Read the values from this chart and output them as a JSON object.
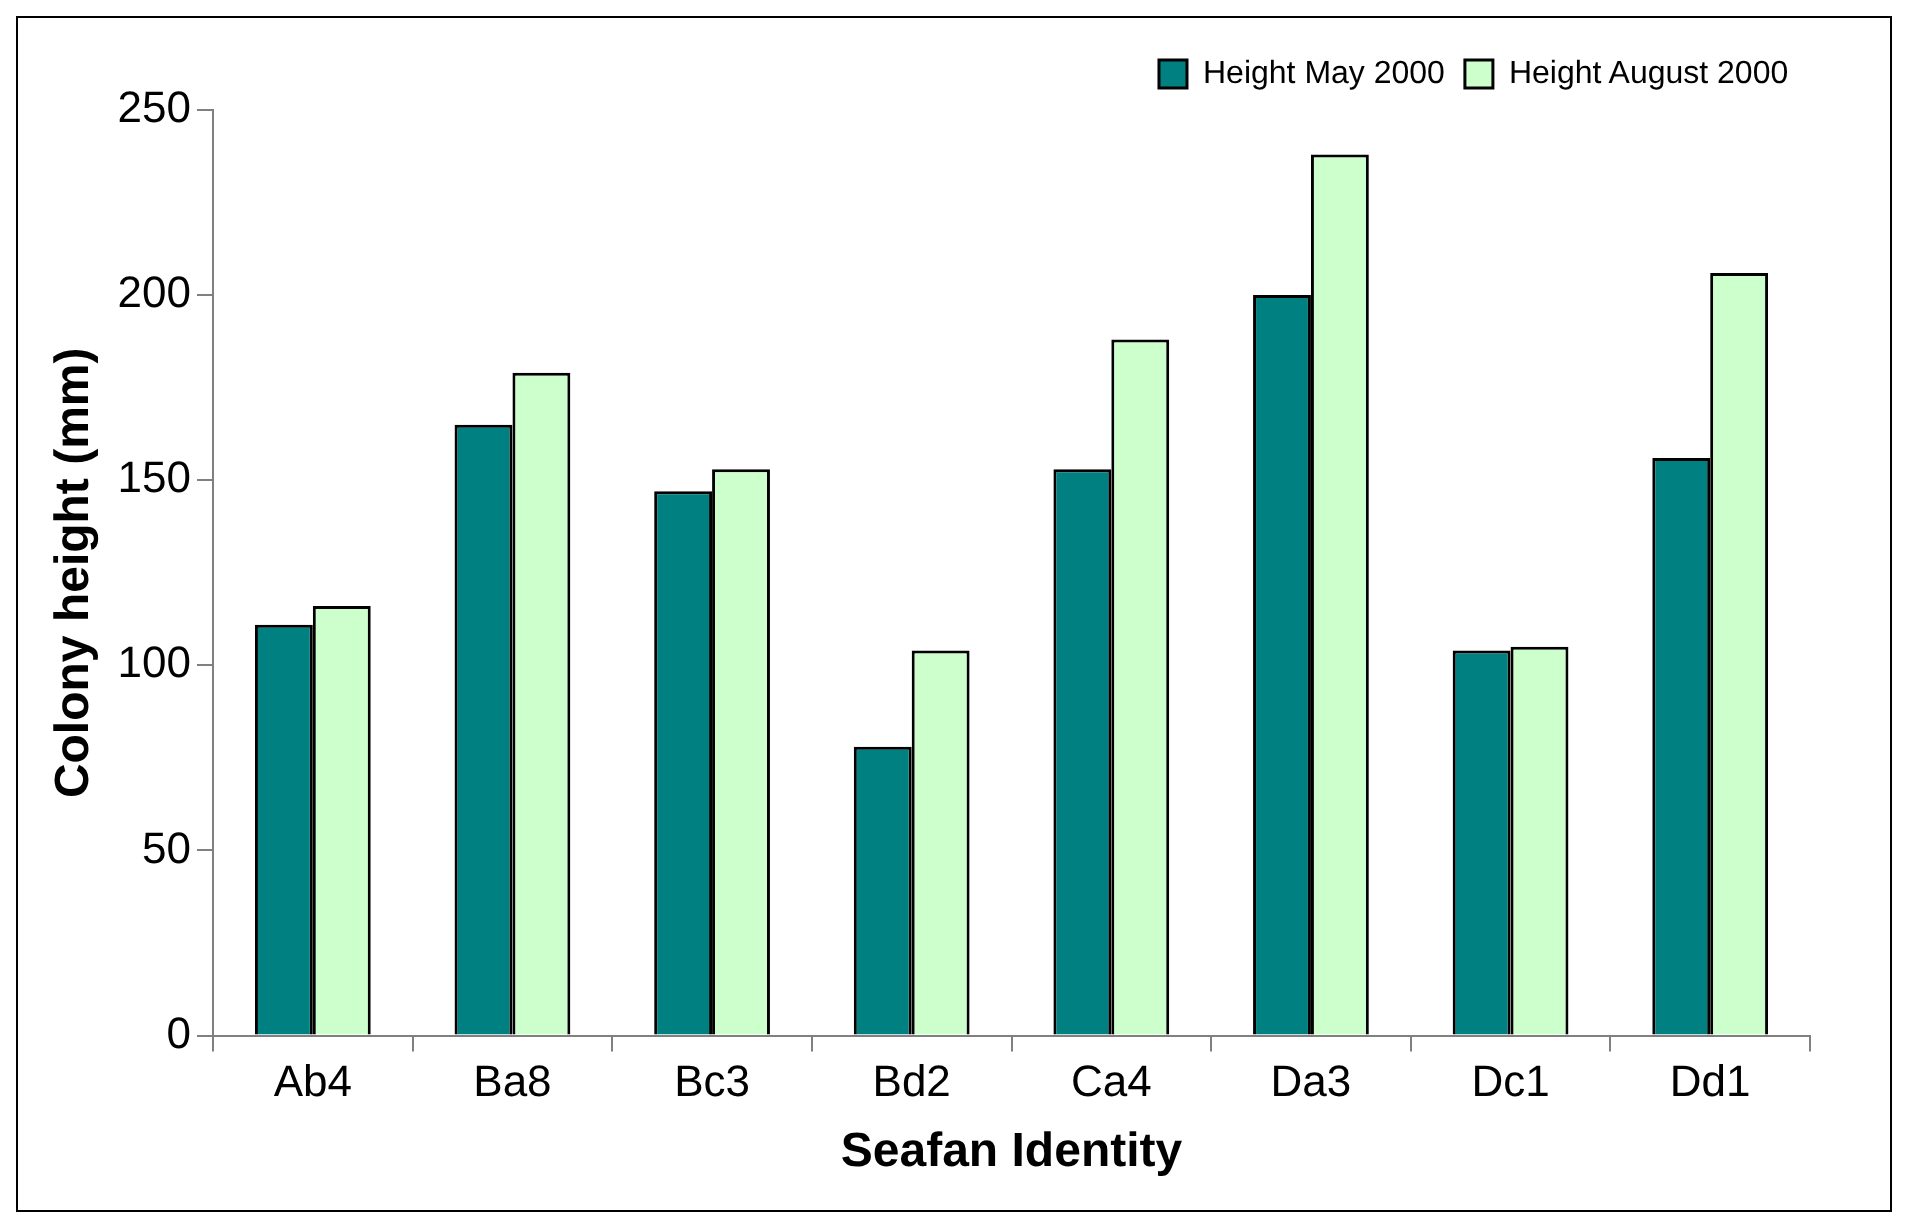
{
  "chart_data": {
    "type": "bar",
    "xlabel": "Seafan Identity",
    "ylabel": "Colony height (mm)",
    "categories": [
      "Ab4",
      "Ba8",
      "Bc3",
      "Bd2",
      "Ca4",
      "Da3",
      "Dc1",
      "Dd1"
    ],
    "series": [
      {
        "name": "Height May 2000",
        "color": "#008080",
        "values": [
          111,
          165,
          147,
          78,
          153,
          200,
          104,
          156
        ]
      },
      {
        "name": "Height August 2000",
        "color": "#ccffcc",
        "values": [
          116,
          179,
          153,
          104,
          188,
          238,
          105,
          206
        ]
      }
    ],
    "ylim": [
      0,
      250
    ],
    "yticks": [
      0,
      50,
      100,
      150,
      200,
      250
    ],
    "grid": false,
    "legend": "top right"
  }
}
